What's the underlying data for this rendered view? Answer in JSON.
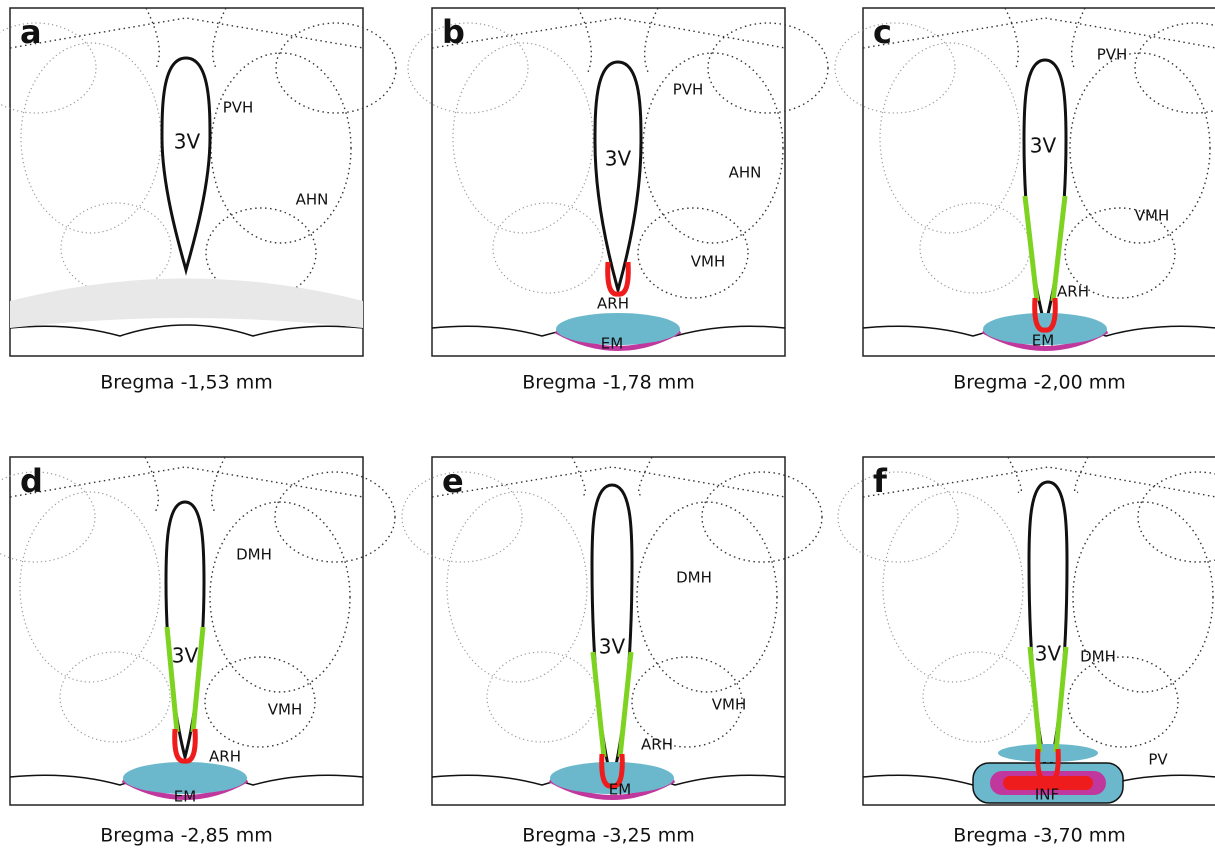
{
  "panels": [
    {
      "letter": "a",
      "labels": [
        "3V",
        "PVH",
        "AHN"
      ],
      "caption": "Bregma -1,53 mm"
    },
    {
      "letter": "b",
      "labels": [
        "3V",
        "PVH",
        "AHN",
        "VMH",
        "ARH",
        "EM"
      ],
      "caption": "Bregma -1,78 mm"
    },
    {
      "letter": "c",
      "labels": [
        "PVH",
        "3V",
        "VMH",
        "ARH",
        "EM"
      ],
      "caption": "Bregma -2,00 mm"
    },
    {
      "letter": "d",
      "labels": [
        "DMH",
        "3V",
        "VMH",
        "ARH",
        "EM"
      ],
      "caption": "Bregma -2,85 mm"
    },
    {
      "letter": "e",
      "labels": [
        "DMH",
        "3V",
        "VMH",
        "ARH",
        "EM"
      ],
      "caption": "Bregma -3,25 mm"
    },
    {
      "letter": "f",
      "labels": [
        "3V",
        "DMH",
        "PV",
        "INF"
      ],
      "caption": "Bregma -3,70 mm"
    }
  ]
}
